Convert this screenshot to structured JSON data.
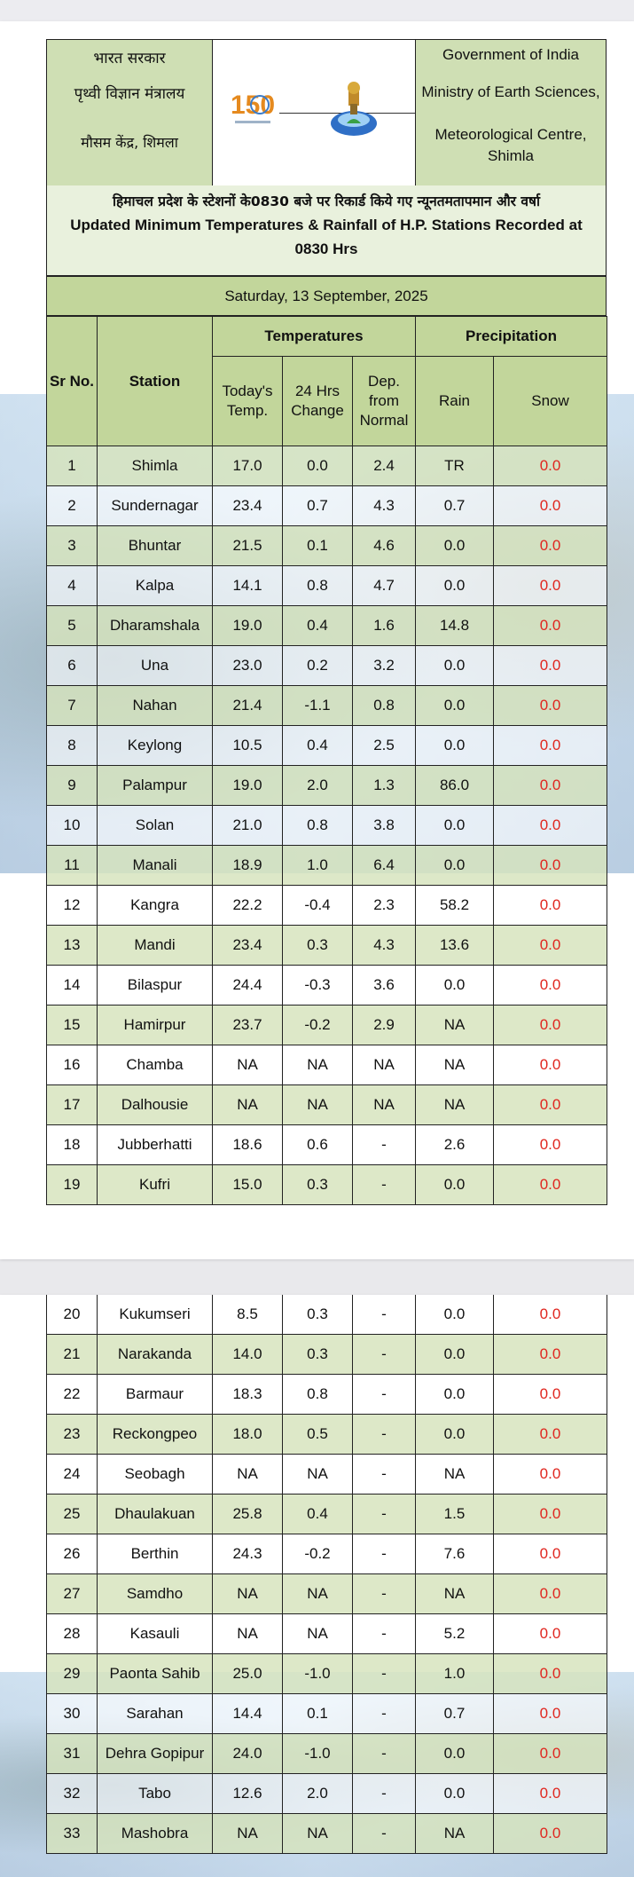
{
  "header": {
    "hindi_lines": [
      "भारत सरकार",
      "पृथ्वी विज्ञान मंत्रालय",
      "मौसम केंद्र, शिमला"
    ],
    "english_lines": [
      "Government of India",
      "Ministry of Earth Sciences,",
      "Meteorological Centre,",
      "Shimla"
    ],
    "logo_text": "150",
    "title_hindi": "हिमाचल प्रदेश के स्टेशनों के0830 बजे पर रिकार्ड किये गए न्यूनतमतापमान और वर्षा",
    "title_english_1": "Updated Minimum Temperatures & Rainfall of H.P. Stations Recorded at",
    "title_english_2": "0830 Hrs",
    "date": "Saturday, 13 September, 2025"
  },
  "table": {
    "headers": {
      "sr_no": "Sr No.",
      "station": "Station",
      "temperatures": "Temperatures",
      "precipitation": "Precipitation",
      "todays_temp": "Today's Temp.",
      "change_24": "24 Hrs Change",
      "dep_normal": "Dep. from Normal",
      "rain": "Rain",
      "snow": "Snow"
    },
    "rows": [
      [
        "1",
        "Shimla",
        "17.0",
        "0.0",
        "2.4",
        "TR",
        "0.0"
      ],
      [
        "2",
        "Sundernagar",
        "23.4",
        "0.7",
        "4.3",
        "0.7",
        "0.0"
      ],
      [
        "3",
        "Bhuntar",
        "21.5",
        "0.1",
        "4.6",
        "0.0",
        "0.0"
      ],
      [
        "4",
        "Kalpa",
        "14.1",
        "0.8",
        "4.7",
        "0.0",
        "0.0"
      ],
      [
        "5",
        "Dharamshala",
        "19.0",
        "0.4",
        "1.6",
        "14.8",
        "0.0"
      ],
      [
        "6",
        "Una",
        "23.0",
        "0.2",
        "3.2",
        "0.0",
        "0.0"
      ],
      [
        "7",
        "Nahan",
        "21.4",
        "-1.1",
        "0.8",
        "0.0",
        "0.0"
      ],
      [
        "8",
        "Keylong",
        "10.5",
        "0.4",
        "2.5",
        "0.0",
        "0.0"
      ],
      [
        "9",
        "Palampur",
        "19.0",
        "2.0",
        "1.3",
        "86.0",
        "0.0"
      ],
      [
        "10",
        "Solan",
        "21.0",
        "0.8",
        "3.8",
        "0.0",
        "0.0"
      ],
      [
        "11",
        "Manali",
        "18.9",
        "1.0",
        "6.4",
        "0.0",
        "0.0"
      ],
      [
        "12",
        "Kangra",
        "22.2",
        "-0.4",
        "2.3",
        "58.2",
        "0.0"
      ],
      [
        "13",
        "Mandi",
        "23.4",
        "0.3",
        "4.3",
        "13.6",
        "0.0"
      ],
      [
        "14",
        "Bilaspur",
        "24.4",
        "-0.3",
        "3.6",
        "0.0",
        "0.0"
      ],
      [
        "15",
        "Hamirpur",
        "23.7",
        "-0.2",
        "2.9",
        "NA",
        "0.0"
      ],
      [
        "16",
        "Chamba",
        "NA",
        "NA",
        "NA",
        "NA",
        "0.0"
      ],
      [
        "17",
        "Dalhousie",
        "NA",
        "NA",
        "NA",
        "NA",
        "0.0"
      ],
      [
        "18",
        "Jubberhatti",
        "18.6",
        "0.6",
        "-",
        "2.6",
        "0.0"
      ],
      [
        "19",
        "Kufri",
        "15.0",
        "0.3",
        "-",
        "0.0",
        "0.0"
      ],
      [
        "20",
        "Kukumseri",
        "8.5",
        "0.3",
        "-",
        "0.0",
        "0.0"
      ],
      [
        "21",
        "Narakanda",
        "14.0",
        "0.3",
        "-",
        "0.0",
        "0.0"
      ],
      [
        "22",
        "Barmaur",
        "18.3",
        "0.8",
        "-",
        "0.0",
        "0.0"
      ],
      [
        "23",
        "Reckongpeo",
        "18.0",
        "0.5",
        "-",
        "0.0",
        "0.0"
      ],
      [
        "24",
        "Seobagh",
        "NA",
        "NA",
        "-",
        "NA",
        "0.0"
      ],
      [
        "25",
        "Dhaulakuan",
        "25.8",
        "0.4",
        "-",
        "1.5",
        "0.0"
      ],
      [
        "26",
        "Berthin",
        "24.3",
        "-0.2",
        "-",
        "7.6",
        "0.0"
      ],
      [
        "27",
        "Samdho",
        "NA",
        "NA",
        "-",
        "NA",
        "0.0"
      ],
      [
        "28",
        "Kasauli",
        "NA",
        "NA",
        "-",
        "5.2",
        "0.0"
      ],
      [
        "29",
        "Paonta Sahib",
        "25.0",
        "-1.0",
        "-",
        "1.0",
        "0.0"
      ],
      [
        "30",
        "Sarahan",
        "14.4",
        "0.1",
        "-",
        "0.7",
        "0.0"
      ],
      [
        "31",
        "Dehra Gopipur",
        "24.0",
        "-1.0",
        "-",
        "0.0",
        "0.0"
      ],
      [
        "32",
        "Tabo",
        "12.6",
        "2.0",
        "-",
        "0.0",
        "0.0"
      ],
      [
        "33",
        "Mashobra",
        "NA",
        "NA",
        "-",
        "NA",
        "0.0"
      ]
    ]
  },
  "colors": {
    "header_green": "#c2d69b",
    "row_green": "#d6e3bc",
    "snow_red": "#e0261f"
  }
}
